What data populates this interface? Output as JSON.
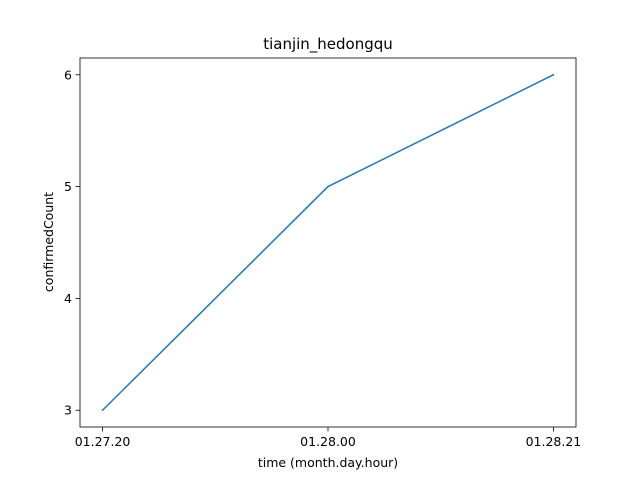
{
  "chart_data": {
    "type": "line",
    "title": "tianjin_hedongqu",
    "xlabel": "time (month.day.hour)",
    "ylabel": "confirmedCount",
    "categories": [
      "01.27.20",
      "01.28.00",
      "01.28.21"
    ],
    "series": [
      {
        "values": [
          3,
          5,
          6
        ],
        "color": "#1f77b4"
      }
    ],
    "yticks": [
      3,
      4,
      5,
      6
    ],
    "ylim": [
      2.85,
      6.15
    ],
    "grid": false,
    "legend": false
  }
}
